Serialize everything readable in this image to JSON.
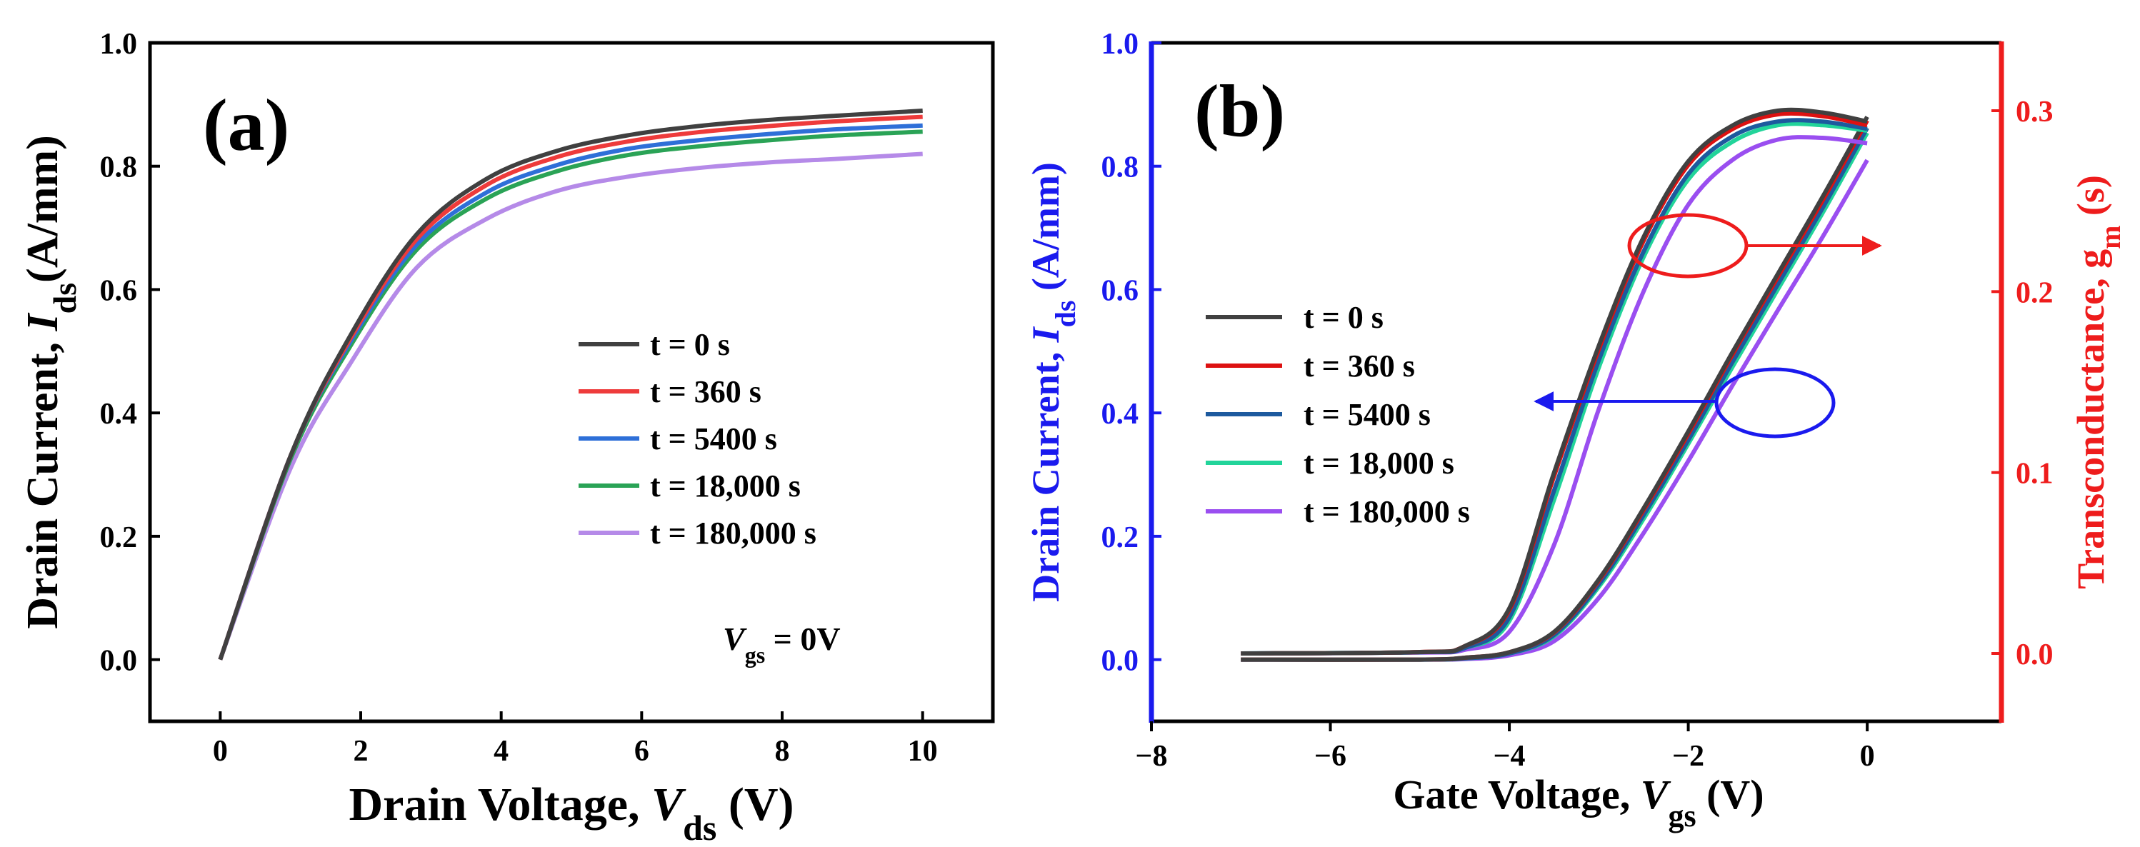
{
  "chart_data": [
    {
      "type": "line",
      "panel_label": "(a)",
      "xlabel": {
        "prefix": "Drain Voltage, ",
        "var": "V",
        "sub": "ds",
        "suffix": " (V)"
      },
      "ylabel": {
        "prefix": "Drain Current, ",
        "var": "I",
        "sub": "ds",
        "suffix": "(A/mm)"
      },
      "xlim": [
        -1,
        11
      ],
      "ylim": [
        -0.1,
        1.0
      ],
      "xticks": [
        0,
        2,
        4,
        6,
        8,
        10
      ],
      "yticks": [
        0.0,
        0.2,
        0.4,
        0.6,
        0.8,
        1.0
      ],
      "xtick_labels": [
        "0",
        "2",
        "4",
        "6",
        "8",
        "10"
      ],
      "ytick_labels": [
        "0.0",
        "0.2",
        "0.4",
        "0.6",
        "0.8",
        "1.0"
      ],
      "annotation": {
        "var": "V",
        "sub": "gs",
        "suffix": " = 0V"
      },
      "x": [
        0,
        1,
        1.85,
        2.8,
        3.8,
        4.8,
        5.8,
        6.8,
        7.8,
        8.8,
        10
      ],
      "series": [
        {
          "name": "t = 0 s",
          "color": "#404040",
          "values": [
            0,
            0.33,
            0.525,
            0.69,
            0.78,
            0.825,
            0.85,
            0.865,
            0.875,
            0.882,
            0.89
          ]
        },
        {
          "name": "t = 360 s",
          "color": "#ee3b3b",
          "values": [
            0,
            0.33,
            0.52,
            0.682,
            0.77,
            0.815,
            0.84,
            0.855,
            0.865,
            0.873,
            0.88
          ]
        },
        {
          "name": "t = 5400 s",
          "color": "#2e6fd8",
          "values": [
            0,
            0.33,
            0.515,
            0.673,
            0.758,
            0.802,
            0.828,
            0.842,
            0.852,
            0.86,
            0.866
          ]
        },
        {
          "name": "t = 18,000 s",
          "color": "#2aa356",
          "values": [
            0,
            0.325,
            0.508,
            0.665,
            0.748,
            0.792,
            0.818,
            0.832,
            0.842,
            0.85,
            0.856
          ]
        },
        {
          "name": "t = 180,000 s",
          "color": "#b58ae8",
          "values": [
            0,
            0.31,
            0.48,
            0.636,
            0.715,
            0.76,
            0.783,
            0.797,
            0.806,
            0.812,
            0.82
          ]
        }
      ]
    },
    {
      "type": "line",
      "panel_label": "(b)",
      "xlabel": {
        "prefix": "Gate Voltage, ",
        "var": "V",
        "sub": "gs",
        "suffix": " (V)"
      },
      "ylabel_left": {
        "prefix": "Drain Current, ",
        "var": "I",
        "sub": "ds",
        "suffix": " (A/mm)"
      },
      "ylabel_right": {
        "prefix": "Transconductance, g",
        "sub": "m",
        "suffix": " (s)"
      },
      "xlim": [
        -8,
        1.5
      ],
      "ylim_left": [
        -0.1,
        1.0
      ],
      "ylim_right": [
        -0.0375,
        0.3375
      ],
      "xticks": [
        -8,
        -6,
        -4,
        -2,
        0
      ],
      "xtick_labels": [
        "−8",
        "−6",
        "−4",
        "−2",
        "0"
      ],
      "yticks_left": [
        0.0,
        0.2,
        0.4,
        0.6,
        0.8,
        1.0
      ],
      "ytick_labels_left": [
        "0.0",
        "0.2",
        "0.4",
        "0.6",
        "0.8",
        "1.0"
      ],
      "yticks_right": [
        0.0,
        0.1,
        0.2,
        0.3
      ],
      "ytick_labels_right": [
        "0.0",
        "0.1",
        "0.2",
        "0.3"
      ],
      "left_axis_color": "#1a1aee",
      "right_axis_color": "#ee1c1c",
      "ids": {
        "x": [
          -7,
          -5,
          -4.5,
          -4,
          -3.5,
          -3,
          -2.5,
          -2,
          -1.5,
          -1,
          -0.5,
          0
        ],
        "series": [
          {
            "name": "t = 0 s",
            "values": [
              0,
              0,
              0.003,
              0.012,
              0.045,
              0.13,
              0.245,
              0.37,
              0.5,
              0.625,
              0.75,
              0.88
            ]
          },
          {
            "name": "t = 360 s",
            "values": [
              0,
              0,
              0.003,
              0.012,
              0.044,
              0.128,
              0.242,
              0.366,
              0.496,
              0.62,
              0.744,
              0.874
            ]
          },
          {
            "name": "t = 5400 s",
            "values": [
              0,
              0,
              0.002,
              0.01,
              0.04,
              0.122,
              0.234,
              0.356,
              0.484,
              0.608,
              0.732,
              0.862
            ]
          },
          {
            "name": "t = 18,000 s",
            "values": [
              0,
              0,
              0.002,
              0.01,
              0.038,
              0.118,
              0.228,
              0.35,
              0.476,
              0.6,
              0.724,
              0.854
            ]
          },
          {
            "name": "t = 180,000 s",
            "values": [
              0,
              0,
              0.001,
              0.007,
              0.03,
              0.1,
              0.205,
              0.322,
              0.446,
              0.566,
              0.685,
              0.81
            ]
          }
        ]
      },
      "gm": {
        "x": [
          -7,
          -5,
          -4.5,
          -4,
          -3.5,
          -3,
          -2.5,
          -2,
          -1.5,
          -1,
          -0.5,
          0
        ],
        "series": [
          {
            "name": "t = 0 s",
            "values": [
              0,
              0.0008,
              0.004,
              0.025,
              0.1,
              0.17,
              0.23,
              0.272,
              0.292,
              0.3,
              0.299,
              0.294
            ]
          },
          {
            "name": "t = 360 s",
            "values": [
              0,
              0.0008,
              0.004,
              0.024,
              0.098,
              0.168,
              0.228,
              0.27,
              0.29,
              0.298,
              0.297,
              0.292
            ]
          },
          {
            "name": "t = 5400 s",
            "values": [
              0,
              0.0007,
              0.003,
              0.02,
              0.09,
              0.162,
              0.222,
              0.265,
              0.286,
              0.294,
              0.294,
              0.29
            ]
          },
          {
            "name": "t = 18,000 s",
            "values": [
              0,
              0.0007,
              0.003,
              0.018,
              0.085,
              0.158,
              0.219,
              0.262,
              0.283,
              0.292,
              0.292,
              0.289
            ]
          },
          {
            "name": "t = 180,000 s",
            "values": [
              0,
              0.0005,
              0.002,
              0.012,
              0.06,
              0.135,
              0.2,
              0.248,
              0.273,
              0.284,
              0.285,
              0.282
            ]
          }
        ]
      },
      "legend": [
        {
          "name": "t = 0 s",
          "color": "#404040"
        },
        {
          "name": "t = 360 s",
          "color": "#dd1111"
        },
        {
          "name": "t = 5400 s",
          "color": "#1d5a9e"
        },
        {
          "name": "t = 18,000 s",
          "color": "#22d49a"
        },
        {
          "name": "t = 180,000 s",
          "color": "#9a4ef0"
        }
      ]
    }
  ]
}
